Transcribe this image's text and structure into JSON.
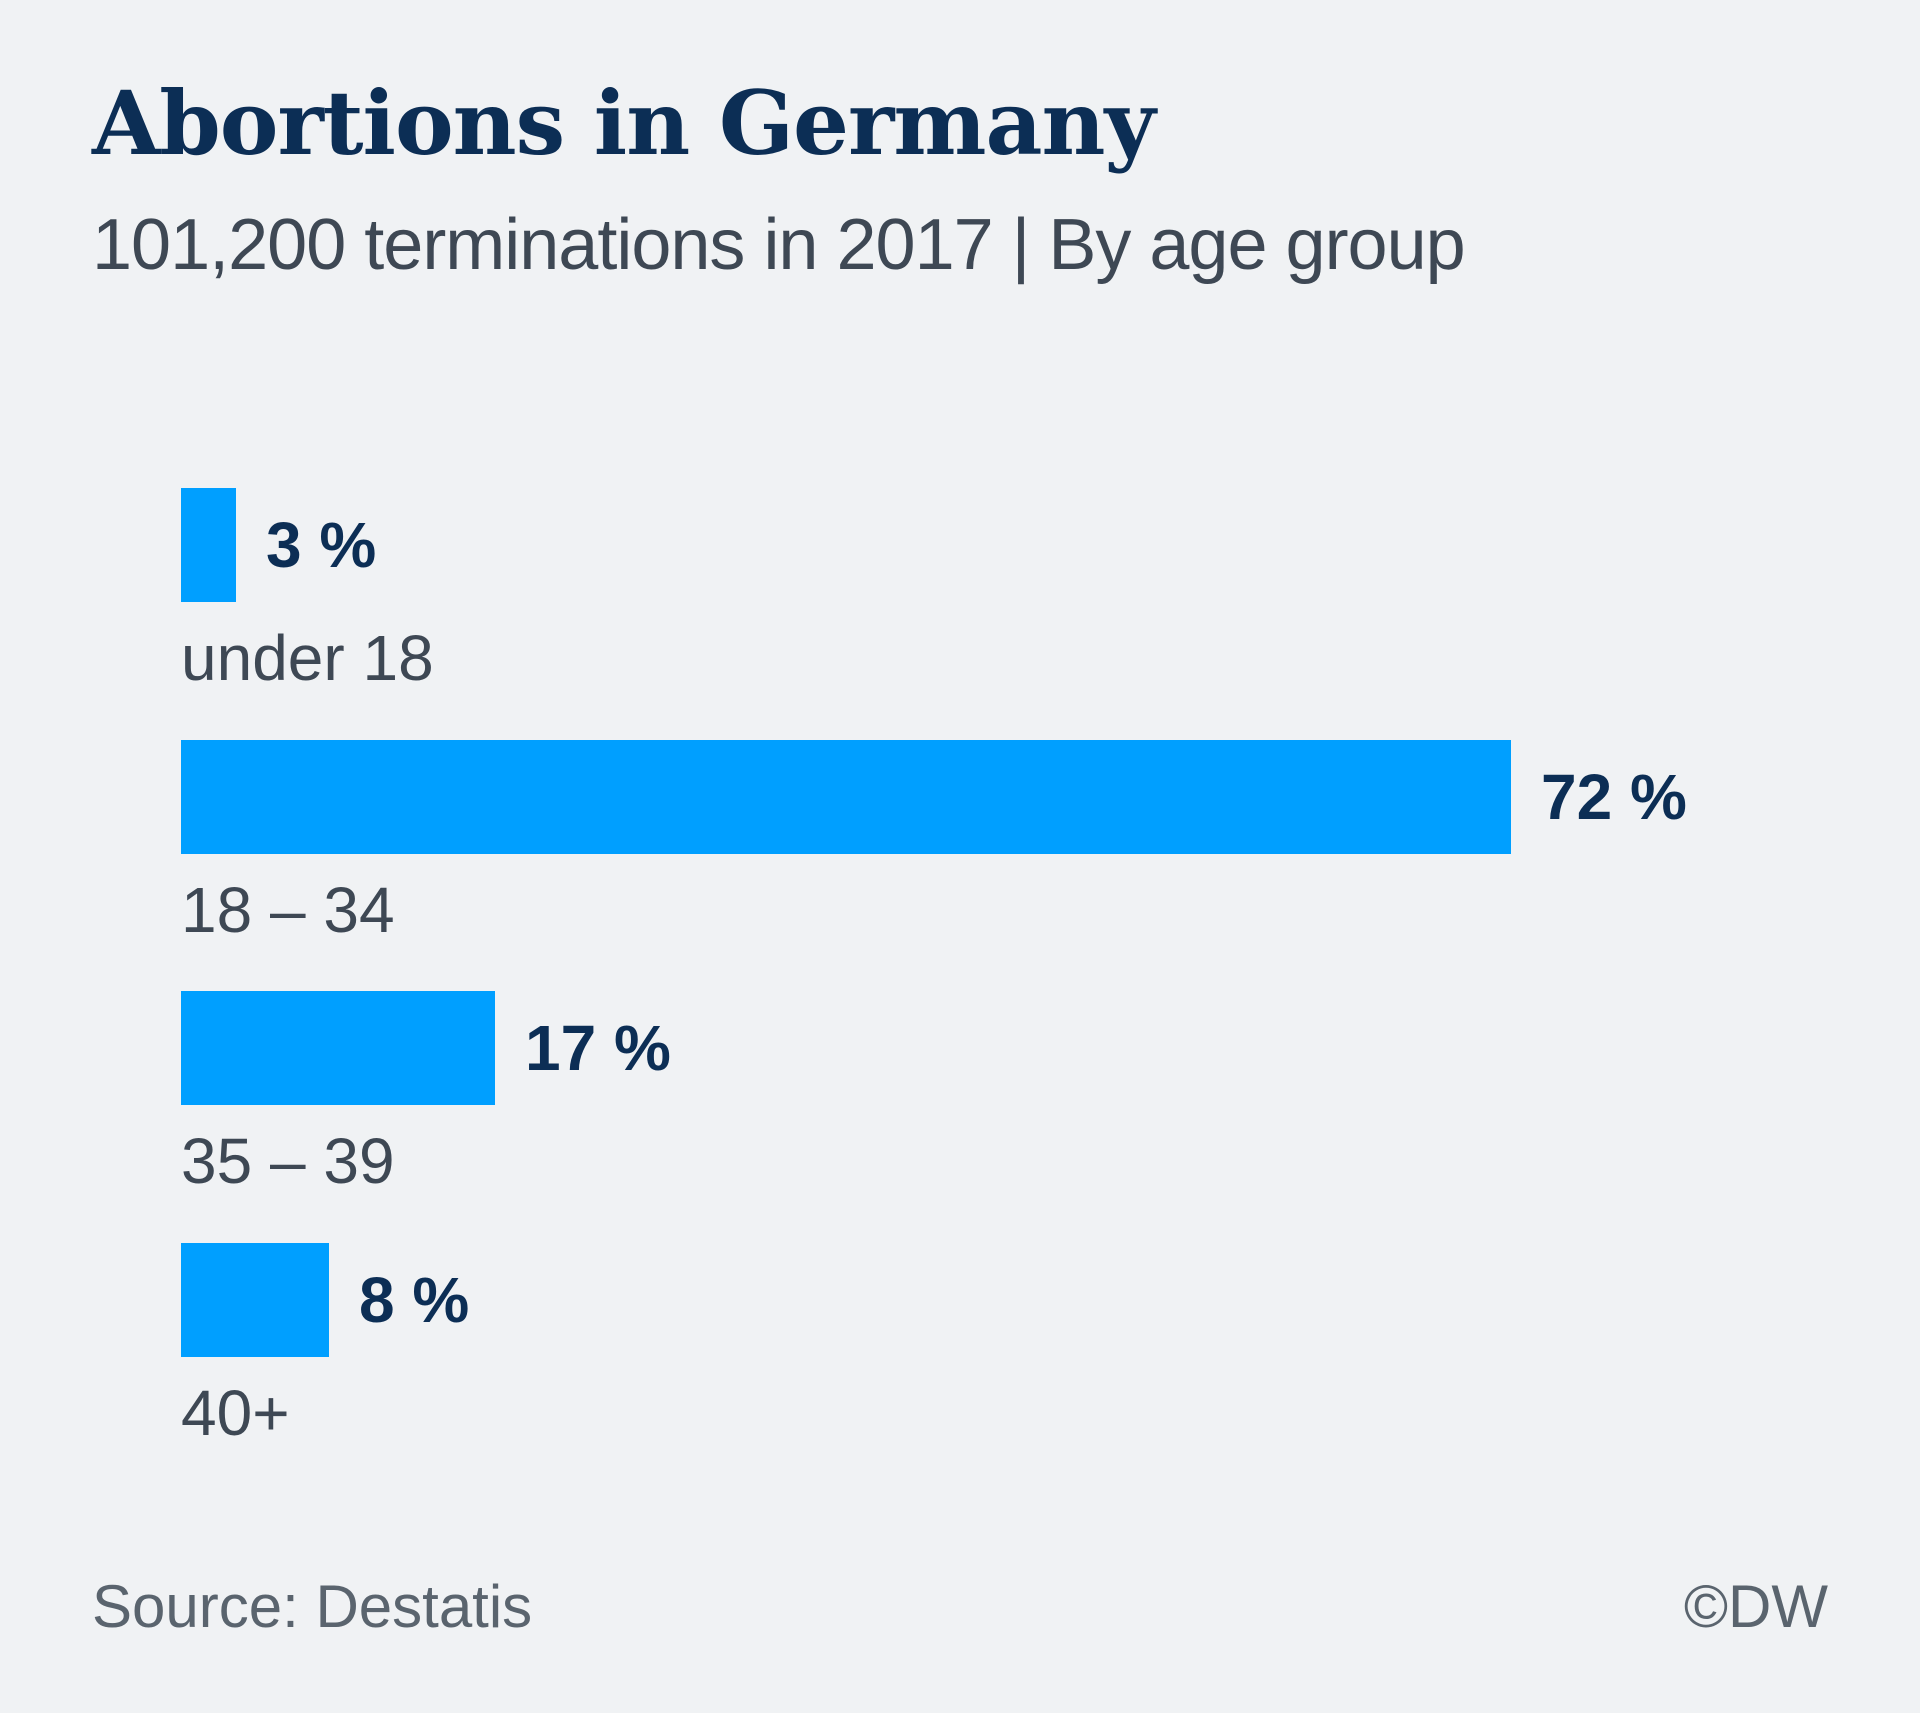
{
  "header": {
    "title": "Abortions in Germany",
    "subtitle": "101,200 terminations in 2017 | By age group"
  },
  "chart_data": {
    "type": "bar",
    "orientation": "horizontal",
    "title": "Abortions in Germany",
    "subtitle": "101,200 terminations in 2017 | By age group",
    "categories": [
      "under 18",
      "18 – 34",
      "35 – 39",
      "40+"
    ],
    "values": [
      3,
      72,
      17,
      8
    ],
    "value_labels": [
      "3 %",
      "72 %",
      "17 %",
      "8 %"
    ],
    "unit": "%",
    "xlim": [
      0,
      72
    ],
    "grid": false,
    "legend": false,
    "bar_color": "#009fff",
    "value_label_color": "#0c2e55",
    "category_label_color": "#3e4854"
  },
  "footer": {
    "source": "Source: Destatis",
    "copyright": "©DW"
  },
  "colors": {
    "background": "#f0f2f4",
    "accent_blue": "#009fff",
    "navy": "#0c2e55",
    "slate": "#3e4854",
    "footer_gray": "#5a646e"
  }
}
